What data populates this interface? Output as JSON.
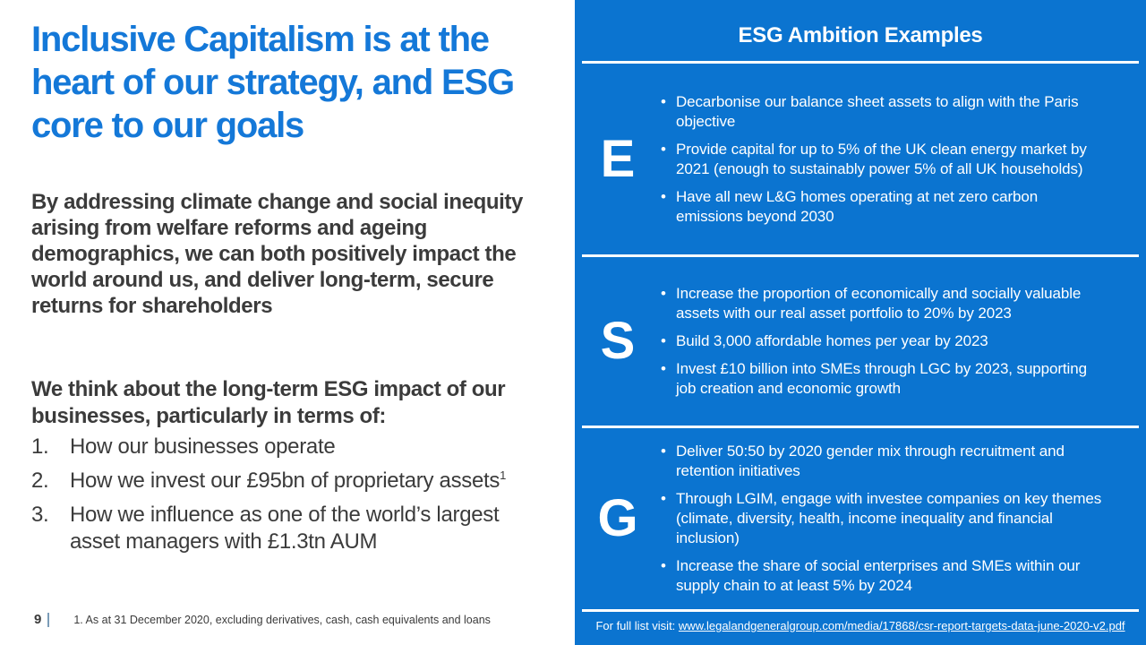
{
  "colors": {
    "title_blue": "#1478d8",
    "panel_blue": "#0b74d0",
    "body_text": "#3b3b3b",
    "page_bar": "#7b9cb8",
    "white": "#ffffff"
  },
  "left": {
    "title_lines": [
      "Inclusive Capitalism is at the",
      "heart of our strategy, and ESG",
      "core to our goals"
    ],
    "intro_lines": [
      "By addressing climate change and social inequity",
      "arising from welfare reforms and ageing",
      "demographics, we can both positively impact the",
      "world around us, and deliver long-term, secure",
      "returns for shareholders"
    ],
    "think_lines": [
      "We think about the long-term ESG impact of our",
      "businesses, particularly in terms of:"
    ],
    "list_items": [
      {
        "marker": "1.",
        "text": "How our businesses operate",
        "sup": ""
      },
      {
        "marker": "2.",
        "text": "How we invest our £95bn of proprietary assets",
        "sup": "1"
      },
      {
        "marker": "3.",
        "text": "How we influence as one of the world’s largest asset managers with £1.3tn AUM",
        "sup": ""
      }
    ],
    "page_number": "9",
    "footnote": "1. As at 31 December 2020, excluding derivatives, cash, cash equivalents and loans"
  },
  "panel": {
    "title": "ESG Ambition Examples",
    "sections": [
      {
        "letter": "E",
        "bullets": [
          "Decarbonise our balance sheet assets to align with the Paris objective",
          "Provide capital for up to 5% of the UK clean energy market by 2021 (enough to sustainably power 5% of all UK households)",
          "Have all new L&G homes operating at net zero carbon emissions beyond 2030"
        ]
      },
      {
        "letter": "S",
        "bullets": [
          "Increase the proportion of economically and socially valuable assets with our real asset portfolio to 20% by 2023",
          "Build 3,000 affordable homes per year by 2023",
          "Invest £10 billion into SMEs through LGC by 2023, supporting job creation and economic growth"
        ]
      },
      {
        "letter": "G",
        "bullets": [
          "Deliver 50:50 by 2020 gender mix through recruitment and retention initiatives",
          "Through LGIM, engage with investee companies on key themes (climate, diversity, health, income inequality and financial inclusion)",
          "Increase the share of social enterprises and SMEs within our supply chain to at least 5% by 2024"
        ]
      }
    ],
    "footer": {
      "prefix": "For full list visit: ",
      "link": "www.legalandgeneralgroup.com/media/17868/csr-report-targets-data-june-2020-v2.pdf"
    }
  }
}
